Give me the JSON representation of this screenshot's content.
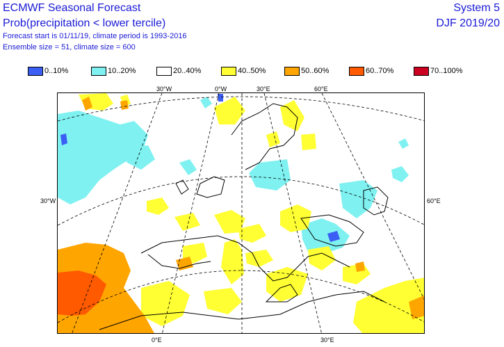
{
  "header": {
    "title": "ECMWF Seasonal Forecast",
    "subtitle": "Prob(precipitation < lower tercile)",
    "forecast_info": "Forecast start is 01/11/19, climate period is 1993-2016",
    "ensemble_info": "Ensemble size = 51, climate size = 600",
    "system": "System 5",
    "season": "DJF 2019/20"
  },
  "legend": [
    {
      "label": "0..10%",
      "color": "#3b5ef5"
    },
    {
      "label": "10..20%",
      "color": "#7ff1f1"
    },
    {
      "label": "20..40%",
      "color": "#ffffff"
    },
    {
      "label": "40..50%",
      "color": "#ffff33"
    },
    {
      "label": "50..60%",
      "color": "#ffa500"
    },
    {
      "label": "60..70%",
      "color": "#ff5a00"
    },
    {
      "label": "70..100%",
      "color": "#cc0020"
    }
  ],
  "axis_labels": {
    "top": [
      "30°W",
      "0°W",
      "30°E",
      "60°E"
    ],
    "left": "30°W",
    "right": "60°E",
    "bottom": [
      "0°E",
      "30°E"
    ]
  },
  "colors": {
    "text_blue": "#1a1ad6",
    "grid": "#000000"
  }
}
